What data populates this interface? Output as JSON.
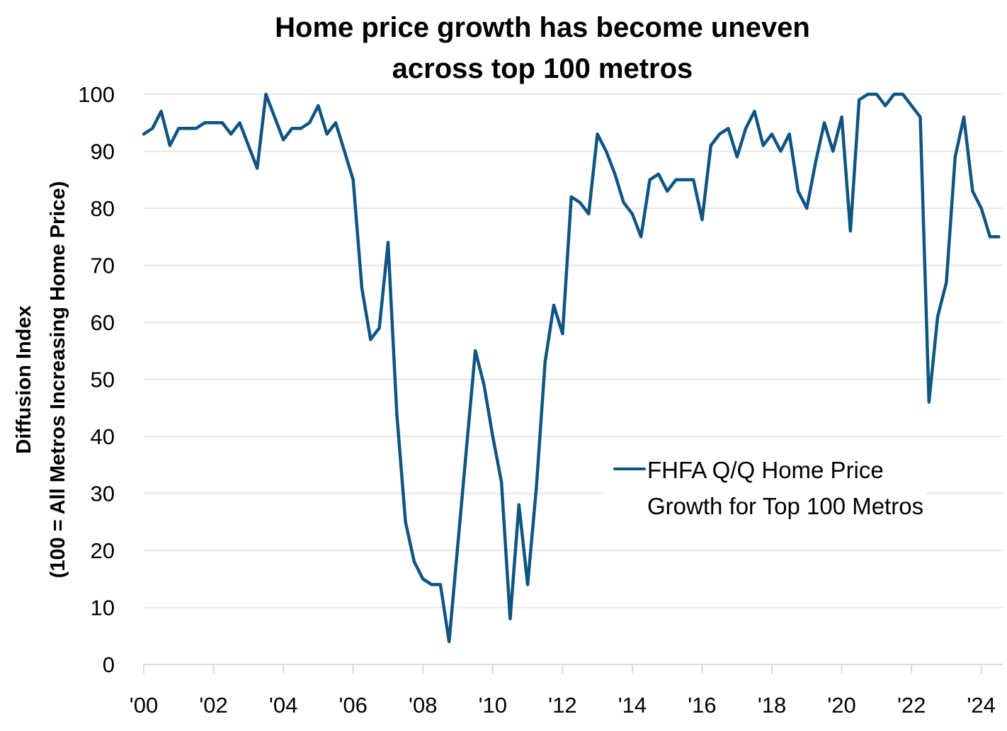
{
  "chart_data": {
    "type": "line",
    "title": [
      "Home price growth has become uneven",
      "across top 100 metros"
    ],
    "ylabel": [
      "Diffusion Index",
      "(100 = All Metros Increasing Home Price)"
    ],
    "xlabel": "",
    "ylim": [
      0,
      100
    ],
    "yticks": [
      0,
      10,
      20,
      30,
      40,
      50,
      60,
      70,
      80,
      90,
      100
    ],
    "xticks": [
      {
        "label": "'00",
        "year": 2000
      },
      {
        "label": "'02",
        "year": 2002
      },
      {
        "label": "'04",
        "year": 2004
      },
      {
        "label": "'06",
        "year": 2006
      },
      {
        "label": "'08",
        "year": 2008
      },
      {
        "label": "'10",
        "year": 2010
      },
      {
        "label": "'12",
        "year": 2012
      },
      {
        "label": "'14",
        "year": 2014
      },
      {
        "label": "'16",
        "year": 2016
      },
      {
        "label": "'18",
        "year": 2018
      },
      {
        "label": "'20",
        "year": 2020
      },
      {
        "label": "'22",
        "year": 2022
      },
      {
        "label": "'24",
        "year": 2024
      }
    ],
    "x_start": "2000Q1",
    "x_frequency": "quarterly",
    "grid": "horizontal",
    "legend_position": "center-right",
    "series": [
      {
        "name": "FHFA Q/Q Home Price Growth for Top 100 Metros",
        "legend_lines": [
          "FHFA Q/Q Home Price",
          "Growth for Top 100 Metros"
        ],
        "color": "#0f5582",
        "values": [
          93,
          94,
          97,
          91,
          94,
          94,
          94,
          95,
          95,
          95,
          93,
          95,
          91,
          87,
          100,
          96,
          92,
          94,
          94,
          95,
          98,
          93,
          95,
          90,
          85,
          66,
          57,
          59,
          74,
          44,
          25,
          18,
          15,
          14,
          14,
          4,
          21,
          38,
          55,
          49,
          40,
          32,
          8,
          28,
          14,
          31,
          53,
          63,
          58,
          82,
          81,
          79,
          93,
          90,
          86,
          81,
          79,
          75,
          85,
          86,
          83,
          85,
          85,
          85,
          78,
          91,
          93,
          94,
          89,
          94,
          97,
          91,
          93,
          90,
          93,
          83,
          80,
          88,
          95,
          90,
          96,
          76,
          99,
          100,
          100,
          98,
          100,
          100,
          98,
          96,
          46,
          61,
          67,
          89,
          96,
          83,
          80,
          75,
          75
        ]
      }
    ]
  },
  "colors": {
    "line": "#0f5582",
    "grid": "#e6e6e6",
    "axis": "#d9d9d9"
  }
}
